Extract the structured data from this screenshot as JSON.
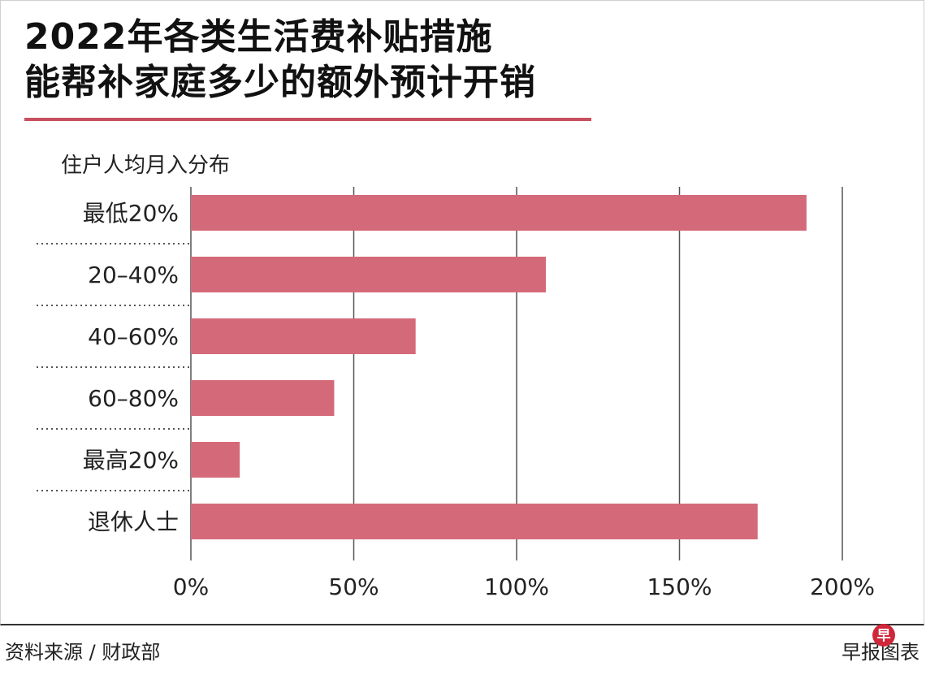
{
  "title_line1": "2022年各类生活费补贴措施",
  "title_line2": "能帮补家庭多少的额外预计开销",
  "footer": {
    "source": "资料来源 / 财政部",
    "credit": "早报图表",
    "logo_char": "早"
  },
  "colors": {
    "bar": "#d46a79",
    "title_rule": "#c8505f",
    "grid": "#555555",
    "separator": "#555555"
  },
  "chart_data": {
    "type": "bar",
    "orientation": "horizontal",
    "title": "2022年各类生活费补贴措施能帮补家庭多少的额外预计开销",
    "ylabel": "住户人均月入分布",
    "xlabel": "",
    "categories": [
      "最低20%",
      "20–40%",
      "40–60%",
      "60–80%",
      "最高20%",
      "退休人士"
    ],
    "values": [
      189,
      109,
      69,
      44,
      15,
      174
    ],
    "unit": "%",
    "xlim": [
      0,
      200
    ],
    "xticks": [
      0,
      50,
      100,
      150,
      200
    ],
    "xtick_labels": [
      "0%",
      "50%",
      "100%",
      "150%",
      "200%"
    ],
    "grid": true,
    "legend": "none"
  }
}
